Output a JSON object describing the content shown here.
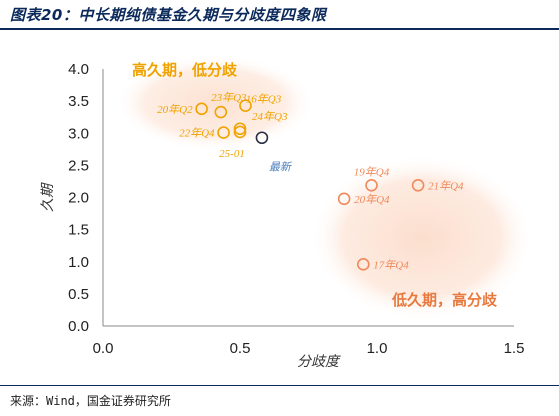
{
  "header": {
    "title": "图表20：中长期纯债基金久期与分歧度四象限"
  },
  "footer": {
    "source": "来源：Wind，国金证券研究所"
  },
  "regions": {
    "top_left": "高久期，低分歧",
    "bottom_right": "低久期，高分歧"
  },
  "colors": {
    "title": "#0b2a5b",
    "yellow": "#f0a300",
    "orange": "#ee8a5c",
    "latest": "#2a2f45",
    "latest_label": "#4a7fbf"
  },
  "chart_data": {
    "type": "scatter",
    "xlabel": "分歧度",
    "ylabel": "久期",
    "xlim": [
      0,
      1.5
    ],
    "ylim": [
      0,
      4
    ],
    "xticks": [
      "0.0",
      "0.5",
      "1.0",
      "1.5"
    ],
    "yticks": [
      "0.0",
      "0.5",
      "1.0",
      "1.5",
      "2.0",
      "2.5",
      "3.0",
      "3.5",
      "4.0"
    ],
    "grid": false,
    "points": [
      {
        "label": "20年Q2",
        "x": 0.36,
        "y": 3.38,
        "group": "top_left",
        "label_pos": "left"
      },
      {
        "label": "23年Q3",
        "x": 0.43,
        "y": 3.33,
        "group": "top_left",
        "label_pos": "top"
      },
      {
        "label": "16年Q3",
        "x": 0.52,
        "y": 3.43,
        "group": "top_left",
        "label_pos": "top"
      },
      {
        "label": "24年Q3",
        "x": 0.5,
        "y": 3.07,
        "group": "top_left",
        "label_pos": "right"
      },
      {
        "label": "22年Q4",
        "x": 0.44,
        "y": 3.01,
        "group": "top_left",
        "label_pos": "left"
      },
      {
        "label": "25-01",
        "x": 0.5,
        "y": 3.02,
        "group": "top_left",
        "label_pos": "below"
      },
      {
        "label": "最新",
        "x": 0.58,
        "y": 2.93,
        "group": "latest",
        "label_pos": "below"
      },
      {
        "label": "19年Q4",
        "x": 0.98,
        "y": 2.19,
        "group": "bottom_right",
        "label_pos": "top"
      },
      {
        "label": "21年Q4",
        "x": 1.15,
        "y": 2.19,
        "group": "bottom_right",
        "label_pos": "right"
      },
      {
        "label": "20年Q4",
        "x": 0.88,
        "y": 1.98,
        "group": "bottom_right",
        "label_pos": "right"
      },
      {
        "label": "17年Q4",
        "x": 0.95,
        "y": 0.96,
        "group": "bottom_right",
        "label_pos": "right"
      }
    ]
  }
}
